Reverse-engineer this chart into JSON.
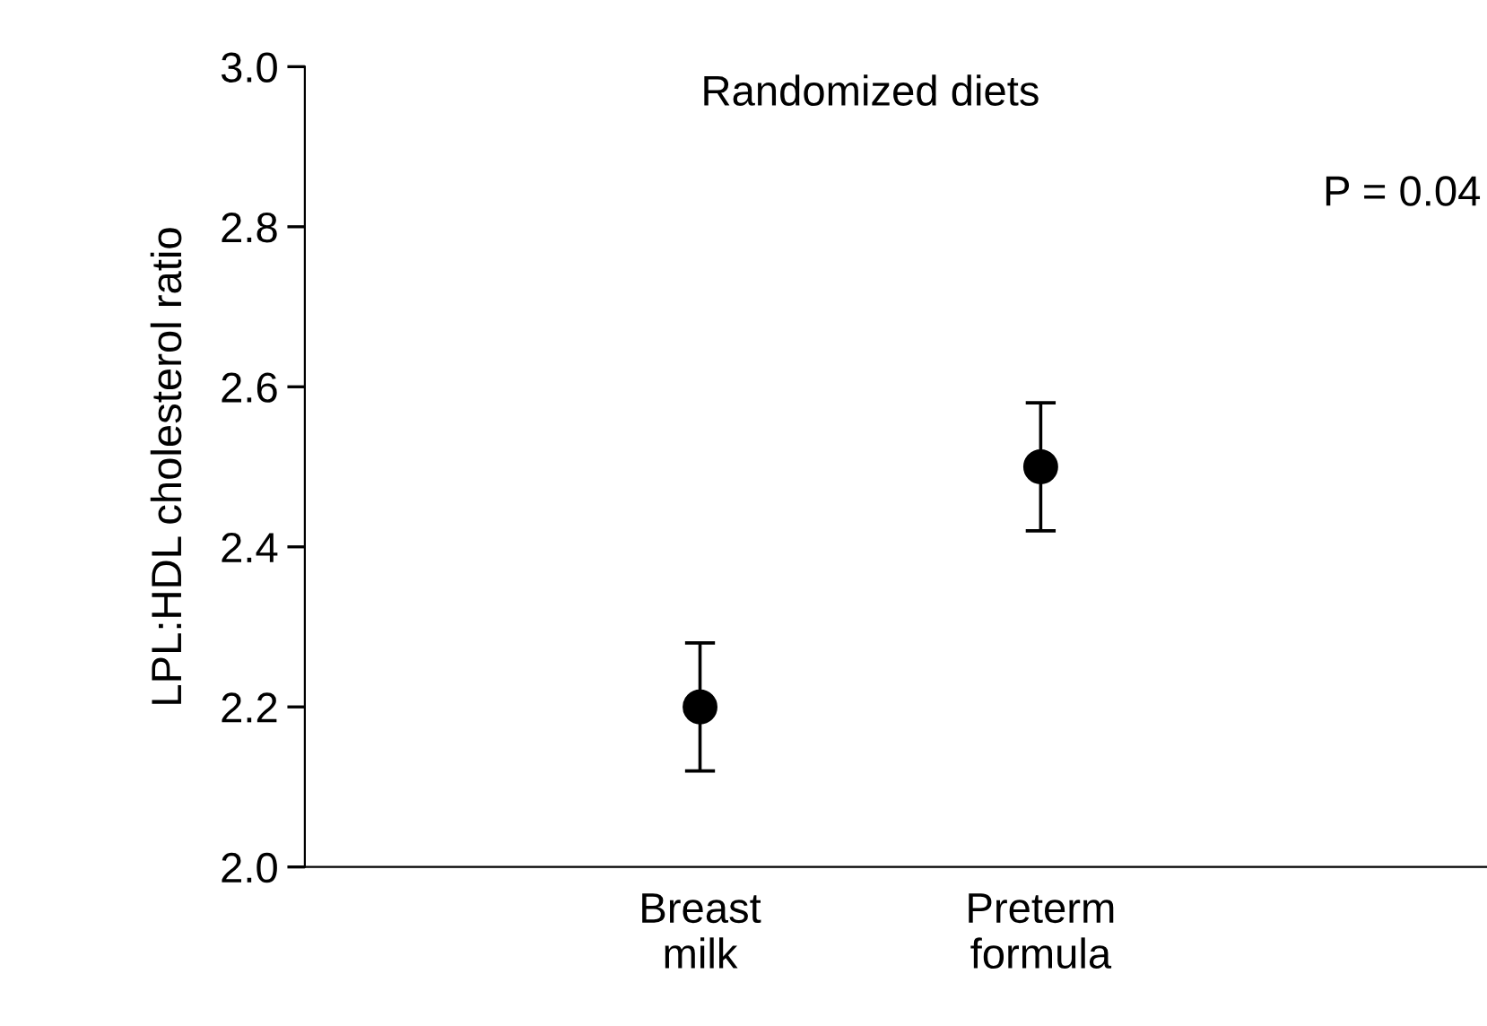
{
  "chart_data": {
    "type": "scatter",
    "title": "Randomized diets",
    "ylabel": "LPL:HDL cholesterol ratio",
    "categories": [
      "Breast\nmilk",
      "Preterm\nformula"
    ],
    "values": [
      2.2,
      2.5
    ],
    "errors": [
      0.08,
      0.08
    ],
    "color": "#000000",
    "marker": "circle",
    "ylim": [
      2.0,
      3.0
    ],
    "yticks": [
      {
        "value": 2,
        "label": "2.0"
      },
      2.2,
      2.4,
      2.6,
      2.8,
      {
        "value": 3,
        "label": "3.0"
      }
    ],
    "annotations": [
      "P = 0.04"
    ]
  }
}
